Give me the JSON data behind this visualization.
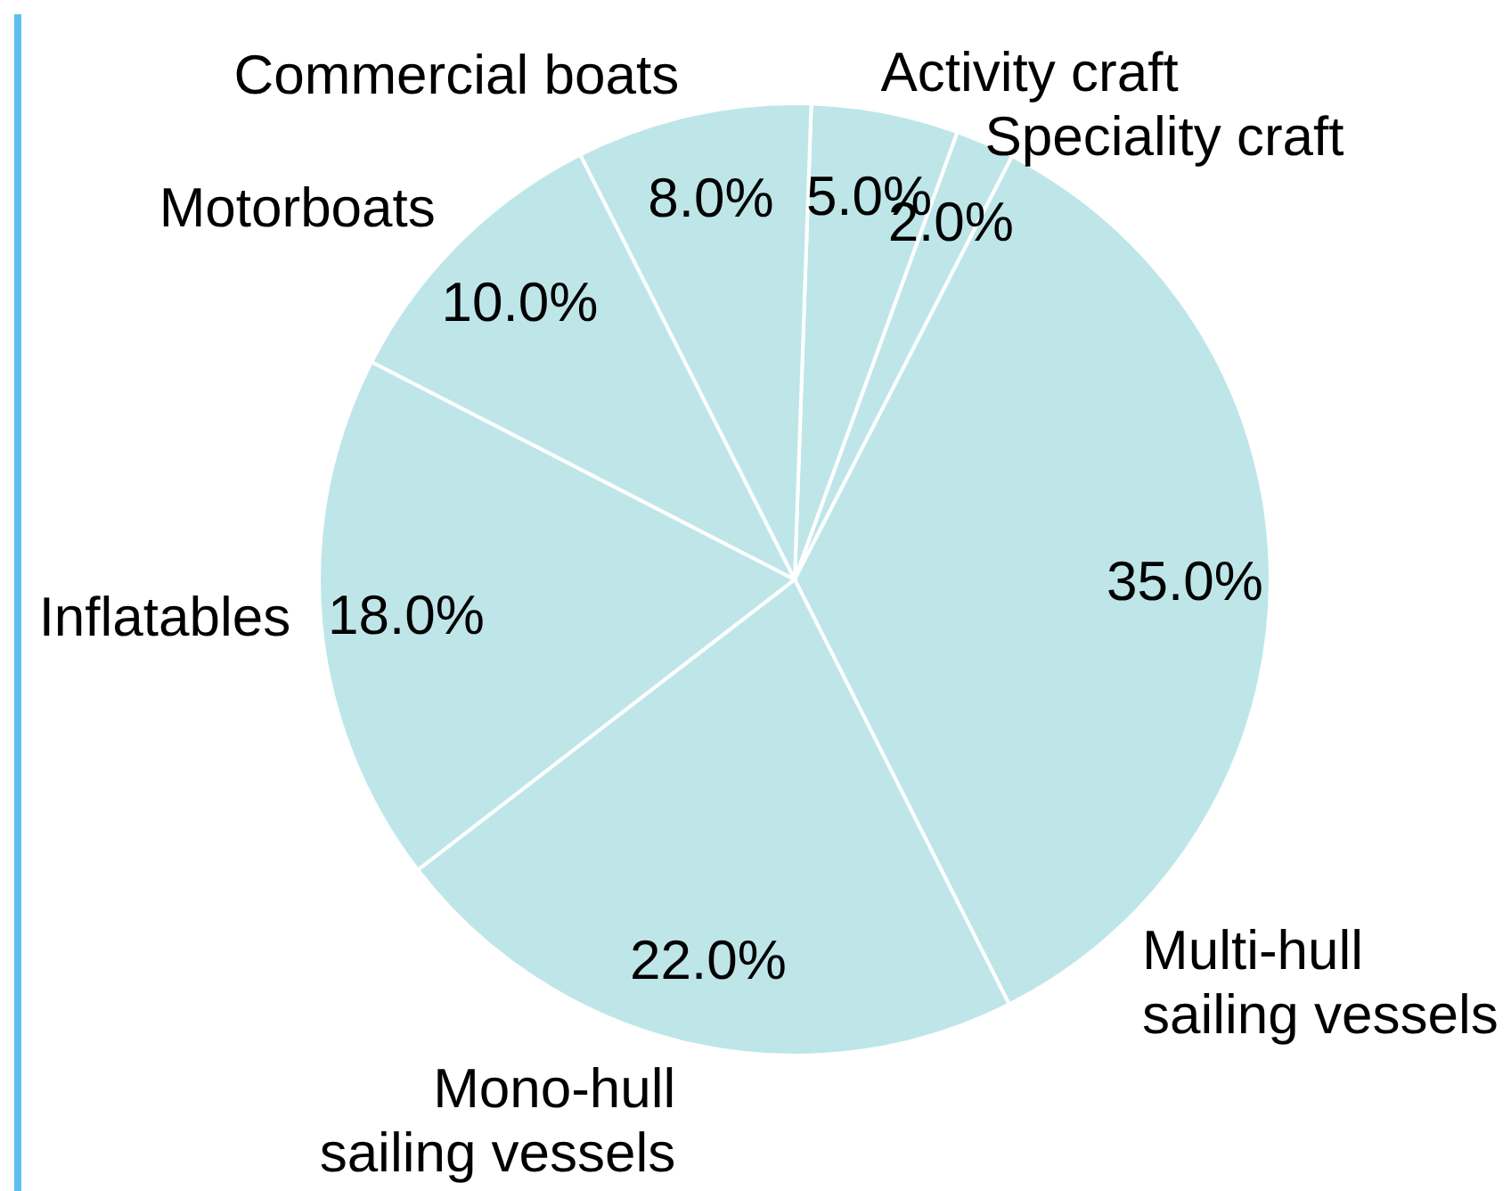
{
  "chart_data": {
    "type": "pie",
    "categories": [
      "Activity craft",
      "Speciality craft",
      "Multi-hull sailing vessels",
      "Mono-hull sailing vessels",
      "Inflatables",
      "Motorboats",
      "Commercial boats"
    ],
    "values": [
      5,
      2,
      35,
      22,
      18,
      10,
      8
    ],
    "colors": [
      "#bee6e9",
      "#bee6e9",
      "#bee6e9",
      "#bee6e9",
      "#bee6e9",
      "#bee6e9",
      "#bee6e9"
    ],
    "value_labels": [
      "5.0%",
      "2.0%",
      "35.0%",
      "22.0%",
      "18.0%",
      "10.0%",
      "8.0%"
    ]
  }
}
